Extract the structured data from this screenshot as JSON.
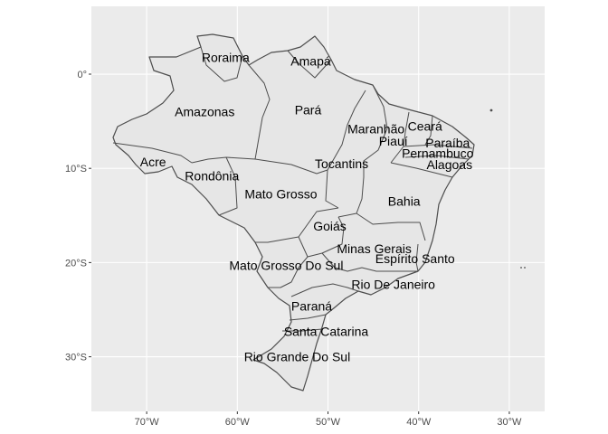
{
  "map": {
    "x_ticks": [
      {
        "lon": -70,
        "label": "70°W"
      },
      {
        "lon": -60,
        "label": "60°W"
      },
      {
        "lon": -50,
        "label": "50°W"
      },
      {
        "lon": -40,
        "label": "40°W"
      },
      {
        "lon": -30,
        "label": "30°W"
      }
    ],
    "y_ticks": [
      {
        "lat": 0,
        "label": "0°"
      },
      {
        "lat": -10,
        "label": "10°S"
      },
      {
        "lat": -20,
        "label": "20°S"
      },
      {
        "lat": -30,
        "label": "30°S"
      }
    ],
    "lon_range": [
      -76.1,
      -26.1
    ],
    "lat_range": [
      -35.8,
      7.2
    ],
    "colors": {
      "panel_background": "#ebebeb",
      "grid_major": "#ffffff",
      "state_fill": "#e6e6e6",
      "state_border": "#4d4d4d",
      "label_text": "#000000"
    },
    "states": [
      {
        "name": "Roraima",
        "lon": -61.3,
        "lat": 1.8
      },
      {
        "name": "Amapá",
        "lon": -51.9,
        "lat": 1.4
      },
      {
        "name": "Amazonas",
        "lon": -63.6,
        "lat": -4.0
      },
      {
        "name": "Pará",
        "lon": -52.2,
        "lat": -3.8
      },
      {
        "name": "Maranhão",
        "lon": -44.7,
        "lat": -5.8
      },
      {
        "name": "Ceará",
        "lon": -39.3,
        "lat": -5.5
      },
      {
        "name": "Piauí",
        "lon": -42.8,
        "lat": -7.1
      },
      {
        "name": "Paraíba",
        "lon": -36.8,
        "lat": -7.3
      },
      {
        "name": "Pernambuco",
        "lon": -37.9,
        "lat": -8.4
      },
      {
        "name": "Alagoas",
        "lon": -36.6,
        "lat": -9.6
      },
      {
        "name": "Acre",
        "lon": -69.3,
        "lat": -9.3
      },
      {
        "name": "Rondônia",
        "lon": -62.8,
        "lat": -10.8
      },
      {
        "name": "Tocantins",
        "lon": -48.5,
        "lat": -9.5
      },
      {
        "name": "Mato Grosso",
        "lon": -55.2,
        "lat": -12.7
      },
      {
        "name": "Bahia",
        "lon": -41.6,
        "lat": -13.5
      },
      {
        "name": "Goiás",
        "lon": -49.8,
        "lat": -16.1
      },
      {
        "name": "Minas Gerais",
        "lon": -44.9,
        "lat": -18.5
      },
      {
        "name": "Espírito Santo",
        "lon": -40.4,
        "lat": -19.6
      },
      {
        "name": "Mato Grosso Do Sul",
        "lon": -54.6,
        "lat": -20.3
      },
      {
        "name": "Rio De Janeiro",
        "lon": -42.8,
        "lat": -22.3
      },
      {
        "name": "Paraná",
        "lon": -51.8,
        "lat": -24.6
      },
      {
        "name": "Santa Catarina",
        "lon": -50.2,
        "lat": -27.3
      },
      {
        "name": "Rio Grande Do Sul",
        "lon": -53.4,
        "lat": -30.0
      }
    ]
  }
}
